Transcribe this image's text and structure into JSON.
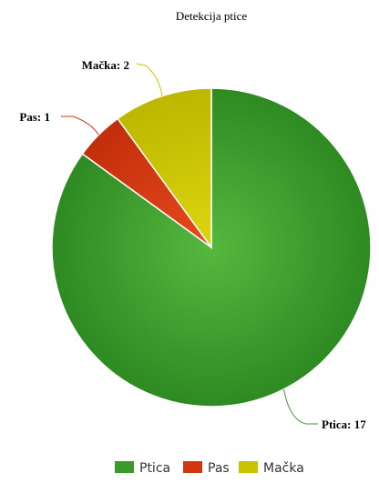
{
  "chart_data": {
    "type": "pie",
    "title": "Detekcija ptice",
    "categories": [
      "Ptica",
      "Pas",
      "Mačka"
    ],
    "values": [
      17,
      1,
      2
    ],
    "colors": [
      "#3c9a2a",
      "#d1360f",
      "#c9c300"
    ],
    "data_labels": [
      "Ptica: 17",
      "Pas: 1",
      "Mačka: 2"
    ],
    "legend": {
      "position": "bottom",
      "items": [
        "Ptica",
        "Pas",
        "Mačka"
      ]
    }
  }
}
